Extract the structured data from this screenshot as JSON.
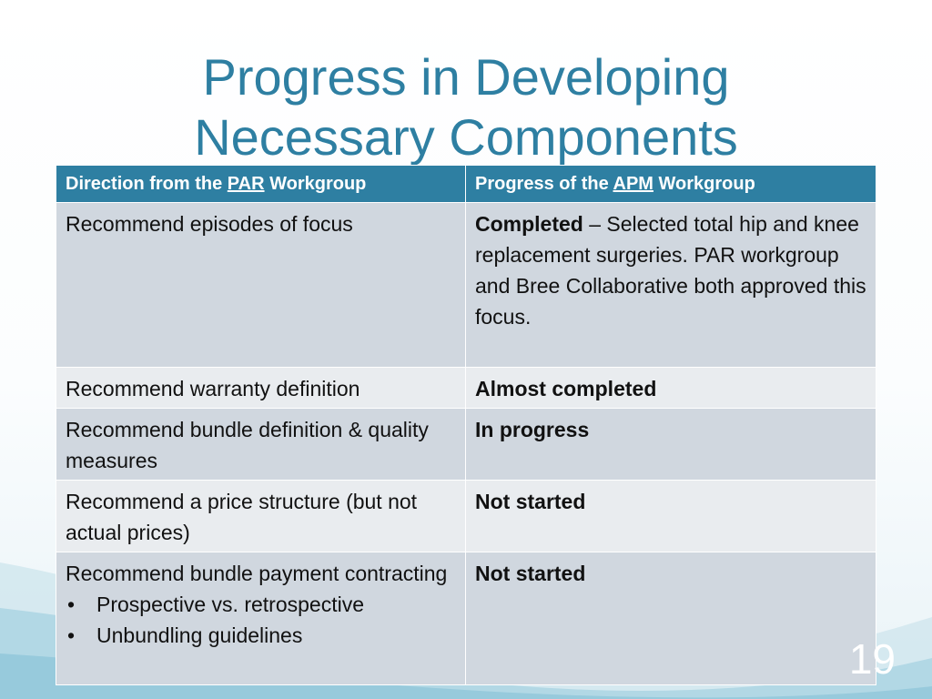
{
  "slide": {
    "title_line1": "Progress in Developing",
    "title_line2": "Necessary Components",
    "page_number": "19"
  },
  "table": {
    "header": {
      "col1_prefix": "Direction from the ",
      "col1_link": "PAR",
      "col1_suffix": " Workgroup",
      "col2_prefix": "Progress of the ",
      "col2_link": "APM",
      "col2_suffix": " Workgroup"
    },
    "rows": [
      {
        "direction": "Recommend episodes of focus",
        "status": "Completed",
        "detail": " – Selected total hip and knee replacement surgeries. PAR workgroup and Bree Collaborative both approved this focus."
      },
      {
        "direction": "Recommend warranty definition",
        "status": "Almost completed"
      },
      {
        "direction": "Recommend bundle definition & quality measures",
        "status": "In progress"
      },
      {
        "direction": "Recommend a price structure (but not actual prices)",
        "status": "Not started"
      },
      {
        "direction": "Recommend bundle payment contracting",
        "bullets": [
          "Prospective vs. retrospective",
          "Unbundling guidelines"
        ],
        "status": "Not started"
      }
    ]
  },
  "colors": {
    "accent": "#2e7fa2",
    "row_dark": "#d0d7df",
    "row_light": "#e9ecef"
  }
}
